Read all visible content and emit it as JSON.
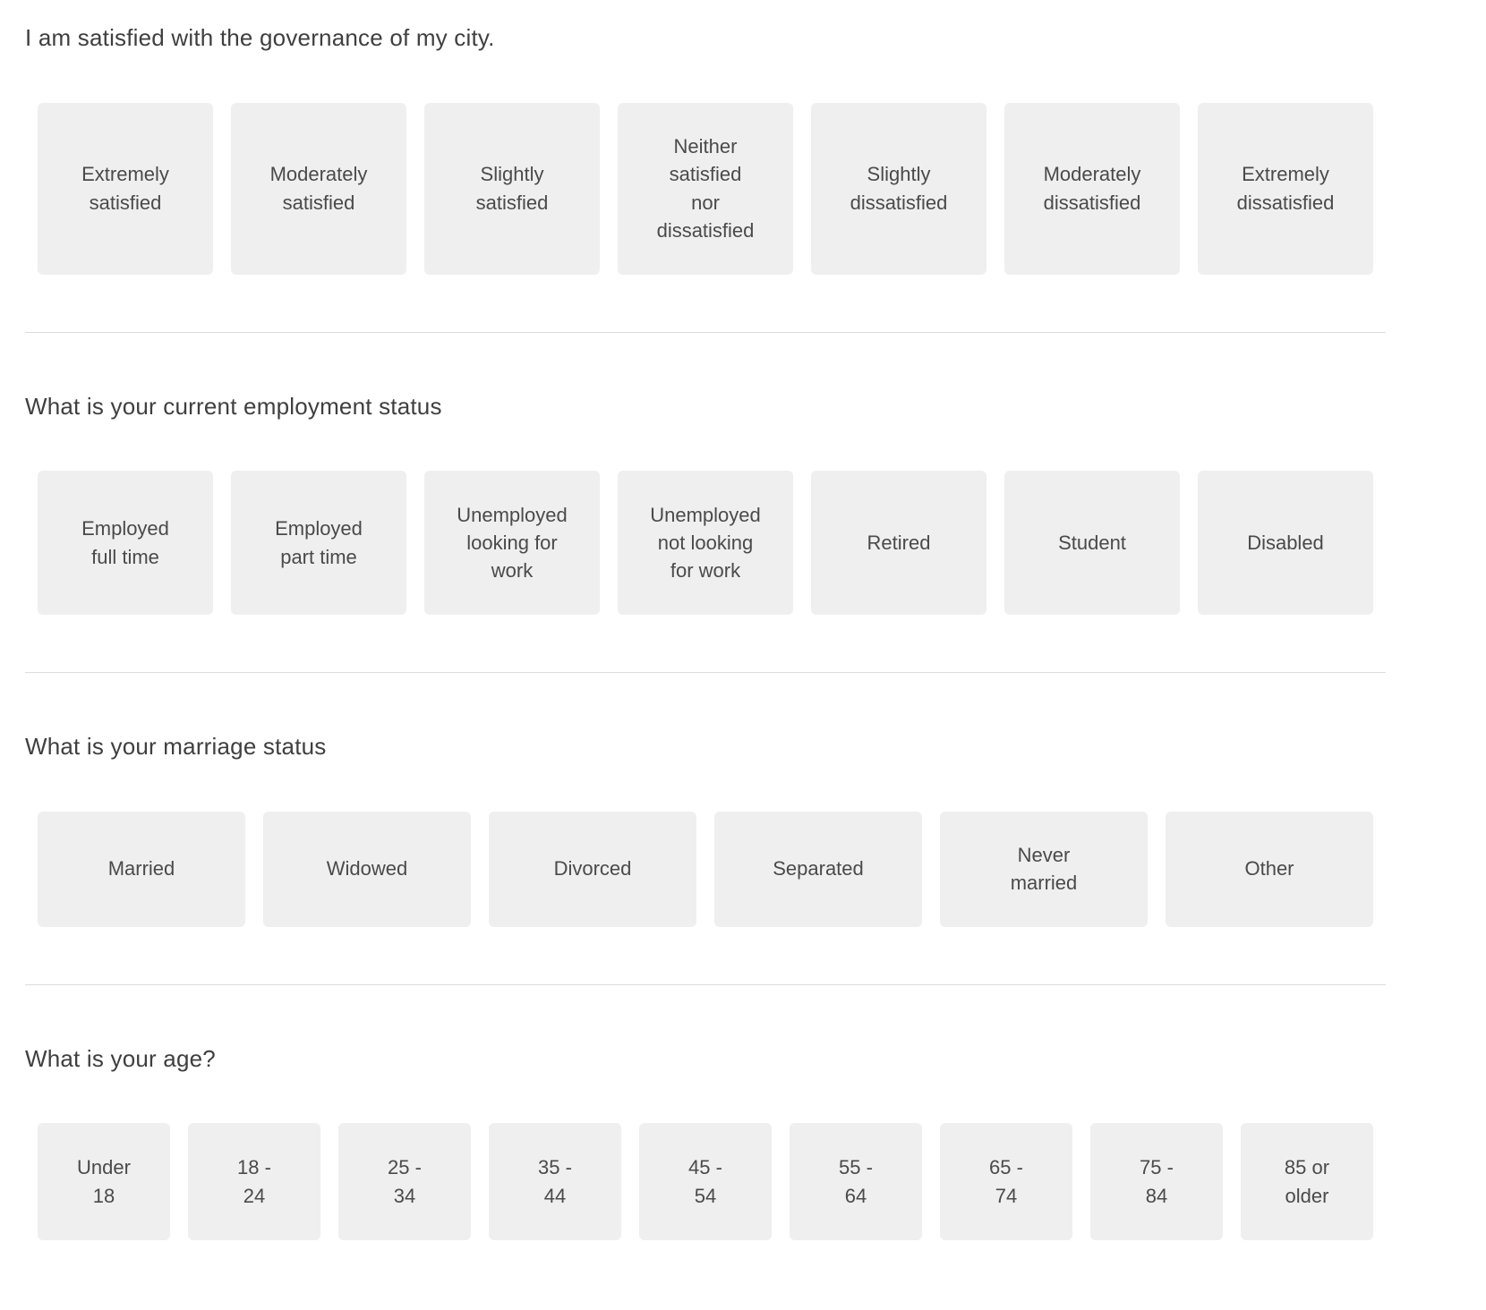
{
  "colors": {
    "page_background": "#ffffff",
    "option_background": "#efefef",
    "question_text": "#3f3f3f",
    "option_text": "#4a4a4a",
    "divider": "#dcdcdc"
  },
  "questions": [
    {
      "label": "I am satisfied with the governance of my city.",
      "options": [
        "Extremely\nsatisfied",
        "Moderately\nsatisfied",
        "Slightly\nsatisfied",
        "Neither\nsatisfied\nnor\ndissatisfied",
        "Slightly\ndissatisfied",
        "Moderately\ndissatisfied",
        "Extremely\ndissatisfied"
      ]
    },
    {
      "label": "What is your current employment status",
      "options": [
        "Employed\nfull time",
        "Employed\npart time",
        "Unemployed\nlooking for\nwork",
        "Unemployed\nnot looking\nfor work",
        "Retired",
        "Student",
        "Disabled"
      ]
    },
    {
      "label": "What is your marriage status",
      "options": [
        "Married",
        "Widowed",
        "Divorced",
        "Separated",
        "Never\nmarried",
        "Other"
      ]
    },
    {
      "label": "What is your age?",
      "options": [
        "Under\n18",
        "18 -\n24",
        "25 -\n34",
        "35 -\n44",
        "45 -\n54",
        "55 -\n64",
        "65 -\n74",
        "75 -\n84",
        "85 or\nolder"
      ]
    }
  ]
}
